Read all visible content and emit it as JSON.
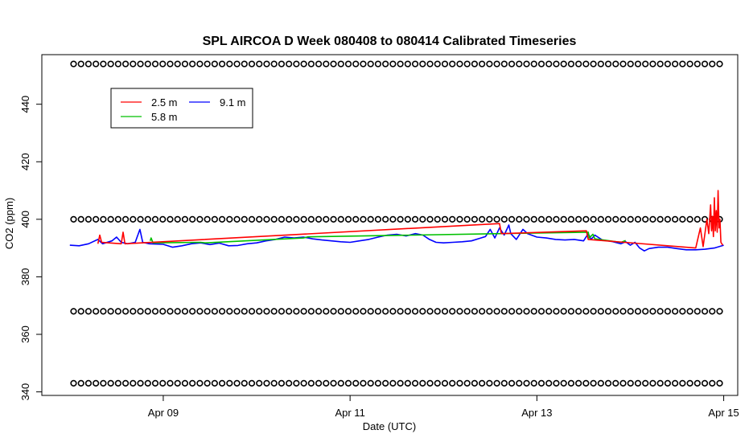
{
  "chart_data": {
    "type": "line",
    "title": "SPL AIRCOA D  Week 080408 to 080414  Calibrated Timeseries",
    "xlabel": "Date (UTC)",
    "ylabel": "CO2 (ppm)",
    "x_ticks": [
      {
        "label": "Apr 09",
        "day": 9
      },
      {
        "label": "Apr 11",
        "day": 11
      },
      {
        "label": "Apr 13",
        "day": 13
      },
      {
        "label": "Apr 15",
        "day": 15
      }
    ],
    "y_ticks": [
      340,
      360,
      380,
      400,
      420,
      440
    ],
    "xlim": [
      "Apr 08 00:00",
      "Apr 15 00:00"
    ],
    "ylim": [
      340,
      455
    ],
    "legend": {
      "position": "top-left",
      "entries": [
        {
          "name": "2.5 m",
          "color": "#ff0000"
        },
        {
          "name": "5.8 m",
          "color": "#00c000"
        },
        {
          "name": "9.1 m",
          "color": "#0000ff"
        }
      ]
    },
    "series": [
      {
        "name": "9.1 m",
        "color": "#0000ff",
        "points": [
          [
            8.0,
            391.0
          ],
          [
            8.1,
            390.8
          ],
          [
            8.2,
            391.5
          ],
          [
            8.3,
            393.0
          ],
          [
            8.35,
            391.5
          ],
          [
            8.45,
            392.5
          ],
          [
            8.5,
            393.8
          ],
          [
            8.55,
            392.0
          ],
          [
            8.62,
            391.5
          ],
          [
            8.7,
            392.0
          ],
          [
            8.75,
            396.5
          ],
          [
            8.78,
            392.0
          ],
          [
            8.85,
            391.5
          ],
          [
            9.0,
            391.3
          ],
          [
            9.1,
            390.3
          ],
          [
            9.2,
            390.8
          ],
          [
            9.3,
            391.5
          ],
          [
            9.4,
            391.8
          ],
          [
            9.5,
            391.2
          ],
          [
            9.6,
            391.7
          ],
          [
            9.7,
            390.8
          ],
          [
            9.8,
            390.9
          ],
          [
            9.9,
            391.5
          ],
          [
            10.0,
            391.8
          ],
          [
            10.1,
            392.5
          ],
          [
            10.2,
            393.0
          ],
          [
            10.3,
            393.8
          ],
          [
            10.4,
            393.5
          ],
          [
            10.5,
            393.8
          ],
          [
            10.6,
            393.2
          ],
          [
            10.7,
            392.8
          ],
          [
            10.8,
            392.5
          ],
          [
            10.9,
            392.2
          ],
          [
            11.0,
            392.0
          ],
          [
            11.1,
            392.5
          ],
          [
            11.2,
            393.0
          ],
          [
            11.3,
            393.8
          ],
          [
            11.4,
            394.5
          ],
          [
            11.5,
            394.8
          ],
          [
            11.6,
            394.2
          ],
          [
            11.7,
            395.0
          ],
          [
            11.78,
            394.5
          ],
          [
            11.85,
            393.0
          ],
          [
            11.92,
            392.0
          ],
          [
            12.0,
            391.8
          ],
          [
            12.1,
            392.0
          ],
          [
            12.2,
            392.2
          ],
          [
            12.3,
            392.5
          ],
          [
            12.4,
            393.5
          ],
          [
            12.45,
            394.0
          ],
          [
            12.5,
            396.5
          ],
          [
            12.55,
            393.5
          ],
          [
            12.6,
            397.0
          ],
          [
            12.65,
            394.5
          ],
          [
            12.7,
            398.0
          ],
          [
            12.72,
            395.0
          ],
          [
            12.78,
            393.0
          ],
          [
            12.85,
            396.5
          ],
          [
            12.9,
            395.0
          ],
          [
            13.0,
            393.8
          ],
          [
            13.1,
            393.5
          ],
          [
            13.2,
            393.0
          ],
          [
            13.3,
            392.8
          ],
          [
            13.4,
            393.0
          ],
          [
            13.5,
            392.5
          ],
          [
            13.55,
            395.0
          ],
          [
            13.58,
            393.0
          ],
          [
            13.62,
            394.5
          ],
          [
            13.7,
            392.8
          ],
          [
            13.8,
            392.3
          ],
          [
            13.9,
            391.5
          ],
          [
            13.95,
            392.2
          ],
          [
            14.0,
            391.0
          ],
          [
            14.05,
            392.0
          ],
          [
            14.1,
            390.0
          ],
          [
            14.15,
            389.0
          ],
          [
            14.2,
            389.8
          ],
          [
            14.3,
            390.3
          ],
          [
            14.4,
            390.3
          ],
          [
            14.5,
            389.8
          ],
          [
            14.6,
            389.4
          ],
          [
            14.7,
            389.4
          ],
          [
            14.8,
            389.6
          ],
          [
            14.9,
            390.0
          ],
          [
            15.0,
            391.0
          ]
        ]
      },
      {
        "name": "5.8 m",
        "color": "#00c000",
        "points": [
          [
            8.86,
            392.5
          ],
          [
            8.87,
            393.5
          ],
          [
            8.89,
            391.8
          ],
          [
            9.4,
            392.0
          ],
          [
            9.45,
            391.8
          ],
          [
            10.5,
            393.5
          ],
          [
            10.55,
            393.9
          ],
          [
            13.55,
            395.5
          ],
          [
            13.56,
            393.5
          ],
          [
            13.6,
            394.8
          ],
          [
            13.62,
            393.2
          ],
          [
            13.9,
            392.0
          ],
          [
            13.95,
            392.6
          ]
        ]
      },
      {
        "name": "2.5 m",
        "color": "#ff0000",
        "points": [
          [
            8.3,
            391.5
          ],
          [
            8.32,
            394.5
          ],
          [
            8.34,
            392.0
          ],
          [
            8.55,
            391.5
          ],
          [
            8.57,
            395.5
          ],
          [
            8.59,
            391.5
          ],
          [
            12.6,
            398.5
          ],
          [
            12.62,
            395.0
          ],
          [
            13.53,
            396.0
          ],
          [
            13.55,
            393.0
          ],
          [
            14.7,
            390.0
          ],
          [
            14.75,
            397.0
          ],
          [
            14.78,
            390.5
          ],
          [
            14.82,
            400.0
          ],
          [
            14.84,
            395.0
          ],
          [
            14.86,
            405.0
          ],
          [
            14.87,
            396.0
          ],
          [
            14.88,
            401.0
          ],
          [
            14.89,
            394.0
          ],
          [
            14.9,
            407.5
          ],
          [
            14.91,
            396.0
          ],
          [
            14.92,
            403.0
          ],
          [
            14.93,
            395.5
          ],
          [
            14.94,
            410.0
          ],
          [
            14.95,
            397.0
          ],
          [
            14.96,
            400.0
          ],
          [
            14.97,
            392.0
          ],
          [
            14.99,
            391.0
          ]
        ]
      },
      {
        "name": "calibration-markers",
        "color": "#000000",
        "marker": "o",
        "levels": [
          343,
          368,
          400,
          454
        ],
        "x_start": 8.04,
        "x_step": 0.0795,
        "x_end": 15.0
      }
    ]
  }
}
